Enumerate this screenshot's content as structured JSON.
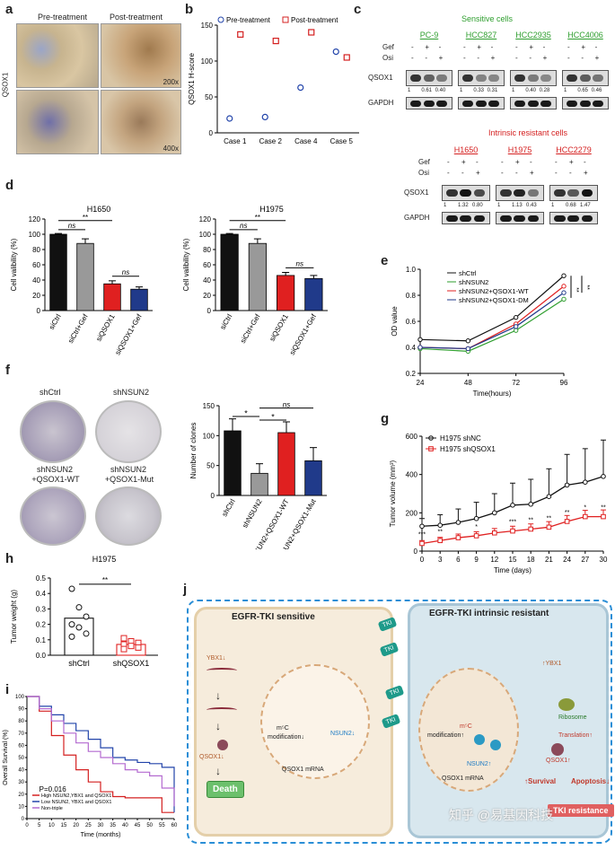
{
  "panel_labels": {
    "a": "a",
    "b": "b",
    "c": "c",
    "d": "d",
    "e": "e",
    "f": "f",
    "g": "g",
    "h": "h",
    "i": "i",
    "j": "j"
  },
  "panel_a": {
    "pre": "Pre-treatment",
    "post": "Post-treatment",
    "ylabel": "QSOX1",
    "mag1": "200x",
    "mag2": "400x"
  },
  "panel_b": {
    "legend_pre": "Pre-treatment",
    "legend_post": "Post-treatment",
    "ylabel": "QSOX1 H-score",
    "yticks": [
      "0",
      "50",
      "100",
      "150"
    ],
    "categories": [
      "Case 1",
      "Case 2",
      "Case 4",
      "Case 5"
    ]
  },
  "panel_c": {
    "sensitive_title": "Sensitive cells",
    "resistant_title": "Intrinsic resistant cells",
    "gef": "Gef",
    "osi": "Osi",
    "qsox1": "QSOX1",
    "gapdh": "GAPDH",
    "sensitive_lines": [
      {
        "name": "PC-9",
        "gef": [
          "-",
          "+",
          "-"
        ],
        "osi": [
          "-",
          "-",
          "+"
        ],
        "vals": [
          "1",
          "0.61",
          "0.40"
        ]
      },
      {
        "name": "HCC827",
        "gef": [
          "-",
          "+",
          "-"
        ],
        "osi": [
          "-",
          "-",
          "+"
        ],
        "vals": [
          "1",
          "0.33",
          "0.31"
        ]
      },
      {
        "name": "HCC2935",
        "gef": [
          "-",
          "+",
          "-"
        ],
        "osi": [
          "-",
          "-",
          "+"
        ],
        "vals": [
          "1",
          "0.40",
          "0.28"
        ]
      },
      {
        "name": "HCC4006",
        "gef": [
          "-",
          "+",
          "-"
        ],
        "osi": [
          "-",
          "-",
          "+"
        ],
        "vals": [
          "1",
          "0.65",
          "0.46"
        ]
      }
    ],
    "resistant_lines": [
      {
        "name": "H1650",
        "gef": [
          "-",
          "+",
          "-"
        ],
        "osi": [
          "-",
          "-",
          "+"
        ],
        "vals": [
          "1",
          "1.32",
          "0.80"
        ]
      },
      {
        "name": "H1975",
        "gef": [
          "-",
          "+",
          "-"
        ],
        "osi": [
          "-",
          "-",
          "+"
        ],
        "vals": [
          "1",
          "1.13",
          "0.43"
        ]
      },
      {
        "name": "HCC2279",
        "gef": [
          "-",
          "+",
          "-"
        ],
        "osi": [
          "-",
          "-",
          "+"
        ],
        "vals": [
          "1",
          "0.68",
          "1.47"
        ]
      }
    ],
    "sensitive_color": "#2e9e2e",
    "resistant_color": "#d42020"
  },
  "panel_d": {
    "ylabel": "Cell valibility (%)",
    "yticks": [
      "0",
      "20",
      "40",
      "60",
      "80",
      "100",
      "120"
    ],
    "sig_main": "**",
    "ns1": "ns",
    "ns2": "ns"
  },
  "panel_e": {
    "ylabel": "OD value",
    "xlabel": "Time(hours)",
    "sig1": "**",
    "sig2": "**"
  },
  "panel_f": {
    "dish_labels": [
      "shCtrl",
      "shNSUN2",
      "shNSUN2\n+QSOX1-WT",
      "shNSUN2\n+QSOX1-Mut"
    ],
    "dish_l1": "shCtrl",
    "dish_l2": "shNSUN2",
    "dish_l3a": "shNSUN2",
    "dish_l3b": "+QSOX1-WT",
    "dish_l4a": "shNSUN2",
    "dish_l4b": "+QSOX1-Mut",
    "ylabel": "Number of clones",
    "sig_a": "*",
    "sig_b": "*",
    "sig_c": "ns"
  },
  "panel_g": {
    "ylabel": "Tumor volume (mm³)",
    "xlabel": "Time (days)",
    "sig_labels": [
      "***",
      "**",
      "*",
      "***",
      "**",
      "**",
      "**",
      "*",
      "**"
    ]
  },
  "panel_h": {
    "title": "H1975",
    "ylabel": "Tumor weight (g)",
    "sig": "**",
    "yticks": [
      "0.0",
      "0.1",
      "0.2",
      "0.3",
      "0.4",
      "0.5"
    ],
    "categories": [
      "shCtrl",
      "shQSOX1"
    ]
  },
  "panel_i": {
    "ylabel": "Overall Survival (%)",
    "xlabel": "Time (months)",
    "pval": "P=0.016",
    "yticks": [
      "0",
      "10",
      "20",
      "30",
      "40",
      "50",
      "60",
      "70",
      "80",
      "90",
      "100"
    ],
    "xticks": [
      "0",
      "5",
      "10",
      "15",
      "20",
      "25",
      "30",
      "35",
      "40",
      "45",
      "50",
      "55",
      "60"
    ],
    "legend": [
      "High NSUN2,YBX1 and QSOX1",
      "Low NSUN2, YBX1 and QSOX1",
      "Non-triple"
    ]
  },
  "panel_j": {
    "sensitive_title": "EGFR-TKI sensitive",
    "resistant_title": "EGFR-TKI intrinsic resistant",
    "ybx1_down": "YBX1↓",
    "ybx1_up": "↑YBX1",
    "qsox1_down": "QSOX1↓",
    "death": "Death",
    "m5c": "m⁵C",
    "mod_down": "modification↓",
    "mod_up": "modification↑",
    "nsun2_down": "NSUN2↓",
    "nsun2_up": "NSUN2↑",
    "qsox1_mrna": "QSOX1 mRNA",
    "ribosome": "Ribosome",
    "translation": "Translation↑",
    "qsox1_up": "QSOX1↑",
    "survival": "↑Survival",
    "apoptosis": "Apoptosis↓",
    "tki": "TKI",
    "tki_resistance": "TKI resistance"
  },
  "watermark": "知乎 @易基因科技",
  "chart_data": [
    {
      "type": "scatter",
      "panel": "b",
      "title": "",
      "ylabel": "QSOX1 H-score",
      "categories": [
        "Case 1",
        "Case 2",
        "Case 4",
        "Case 5"
      ],
      "series": [
        {
          "name": "Pre-treatment",
          "values": [
            20,
            22,
            63,
            113
          ]
        },
        {
          "name": "Post-treatment",
          "values": [
            137,
            128,
            140,
            105
          ]
        }
      ],
      "ylim": [
        0,
        150
      ]
    },
    {
      "type": "bar",
      "panel": "d-left",
      "title": "H1650",
      "ylabel": "Cell valibility (%)",
      "categories": [
        "siCtrl",
        "siCtrl+Gef",
        "siQSOX1",
        "siQSOX1+Gef"
      ],
      "values": [
        100,
        88,
        35,
        28
      ],
      "errors": [
        1,
        6,
        4,
        3
      ],
      "ylim": [
        0,
        120
      ]
    },
    {
      "type": "bar",
      "panel": "d-right",
      "title": "H1975",
      "ylabel": "Cell valibility (%)",
      "categories": [
        "siCtrl",
        "siCtrl+Gef",
        "siQSOX1",
        "siQSOX1+Gef"
      ],
      "values": [
        100,
        88,
        46,
        42
      ],
      "errors": [
        1,
        6,
        4,
        4
      ],
      "ylim": [
        0,
        120
      ]
    },
    {
      "type": "line",
      "panel": "e",
      "xlabel": "Time(hours)",
      "ylabel": "OD value",
      "x": [
        24,
        48,
        72,
        96
      ],
      "series": [
        {
          "name": "shCtrl",
          "values": [
            0.46,
            0.45,
            0.63,
            0.95
          ]
        },
        {
          "name": "shNSUN2",
          "values": [
            0.39,
            0.37,
            0.53,
            0.77
          ]
        },
        {
          "name": "shNSUN2+QSOX1-WT",
          "values": [
            0.4,
            0.39,
            0.58,
            0.87
          ]
        },
        {
          "name": "shNSUN2+QSOX1-DM",
          "values": [
            0.4,
            0.39,
            0.56,
            0.82
          ]
        }
      ],
      "ylim": [
        0.2,
        1.0
      ]
    },
    {
      "type": "bar",
      "panel": "f",
      "ylabel": "Number of clones",
      "categories": [
        "shCtrl",
        "shNSUN2",
        "shNSUN2+QSOX1-WT",
        "shNSUN2+QSOX1-Mut"
      ],
      "values": [
        108,
        37,
        105,
        58
      ],
      "errors": [
        20,
        16,
        18,
        22
      ],
      "ylim": [
        0,
        150
      ]
    },
    {
      "type": "line",
      "panel": "g",
      "xlabel": "Time (days)",
      "ylabel": "Tumor volume (mm³)",
      "x": [
        0,
        3,
        6,
        9,
        12,
        15,
        18,
        21,
        24,
        27,
        30
      ],
      "series": [
        {
          "name": "H1975 shNC",
          "values": [
            130,
            135,
            150,
            170,
            200,
            240,
            245,
            285,
            345,
            360,
            390
          ]
        },
        {
          "name": "H1975 shQSOX1",
          "values": [
            40,
            55,
            70,
            80,
            95,
            105,
            115,
            125,
            155,
            180,
            180
          ]
        }
      ],
      "ylim": [
        0,
        600
      ]
    },
    {
      "type": "scatter",
      "panel": "h",
      "title": "H1975",
      "ylabel": "Tumor weight (g)",
      "categories": [
        "shCtrl",
        "shQSOX1"
      ],
      "series": [
        {
          "name": "shCtrl",
          "values": [
            0.43,
            0.31,
            0.25,
            0.2,
            0.18,
            0.14,
            0.12
          ]
        },
        {
          "name": "shQSOX1",
          "values": [
            0.11,
            0.09,
            0.08,
            0.07,
            0.06,
            0.05,
            0.04
          ]
        }
      ],
      "means": [
        0.24,
        0.07
      ],
      "ylim": [
        0,
        0.5
      ]
    },
    {
      "type": "line",
      "panel": "i",
      "xlabel": "Time (months)",
      "ylabel": "Overall Survival (%)",
      "x": [
        0,
        5,
        10,
        15,
        20,
        25,
        30,
        35,
        40,
        45,
        50,
        55,
        60
      ],
      "series": [
        {
          "name": "High NSUN2,YBX1 and QSOX1",
          "values": [
            100,
            88,
            68,
            52,
            40,
            30,
            22,
            18,
            17,
            17,
            17,
            5,
            5
          ]
        },
        {
          "name": "Low NSUN2, YBX1 and QSOX1",
          "values": [
            100,
            92,
            85,
            78,
            72,
            65,
            58,
            50,
            48,
            46,
            45,
            42,
            5
          ]
        },
        {
          "name": "Non-triple",
          "values": [
            100,
            90,
            80,
            70,
            62,
            55,
            50,
            45,
            40,
            38,
            35,
            25,
            10
          ]
        }
      ],
      "ylim": [
        0,
        100
      ]
    }
  ]
}
